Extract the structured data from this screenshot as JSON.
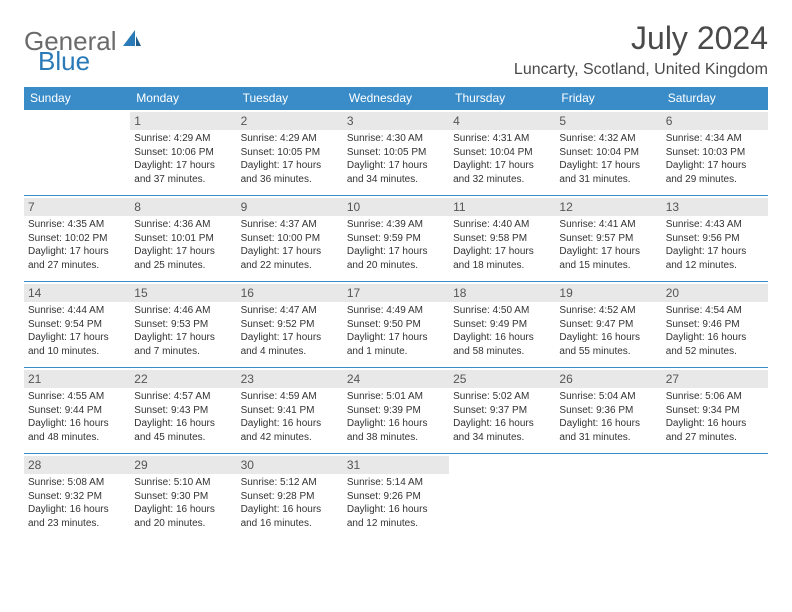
{
  "logo": {
    "text1": "General",
    "text2": "Blue"
  },
  "title": "July 2024",
  "location": "Luncarty, Scotland, United Kingdom",
  "colors": {
    "header_bg": "#3a8cc9",
    "header_text": "#ffffff",
    "daynum_bg": "#e8e8e8",
    "border": "#3a8cc9",
    "logo_gray": "#6b6b6b",
    "logo_blue": "#2a7ab8"
  },
  "weekdays": [
    "Sunday",
    "Monday",
    "Tuesday",
    "Wednesday",
    "Thursday",
    "Friday",
    "Saturday"
  ],
  "weeks": [
    [
      null,
      {
        "n": "1",
        "sunrise": "4:29 AM",
        "sunset": "10:06 PM",
        "daylight": "17 hours and 37 minutes."
      },
      {
        "n": "2",
        "sunrise": "4:29 AM",
        "sunset": "10:05 PM",
        "daylight": "17 hours and 36 minutes."
      },
      {
        "n": "3",
        "sunrise": "4:30 AM",
        "sunset": "10:05 PM",
        "daylight": "17 hours and 34 minutes."
      },
      {
        "n": "4",
        "sunrise": "4:31 AM",
        "sunset": "10:04 PM",
        "daylight": "17 hours and 32 minutes."
      },
      {
        "n": "5",
        "sunrise": "4:32 AM",
        "sunset": "10:04 PM",
        "daylight": "17 hours and 31 minutes."
      },
      {
        "n": "6",
        "sunrise": "4:34 AM",
        "sunset": "10:03 PM",
        "daylight": "17 hours and 29 minutes."
      }
    ],
    [
      {
        "n": "7",
        "sunrise": "4:35 AM",
        "sunset": "10:02 PM",
        "daylight": "17 hours and 27 minutes."
      },
      {
        "n": "8",
        "sunrise": "4:36 AM",
        "sunset": "10:01 PM",
        "daylight": "17 hours and 25 minutes."
      },
      {
        "n": "9",
        "sunrise": "4:37 AM",
        "sunset": "10:00 PM",
        "daylight": "17 hours and 22 minutes."
      },
      {
        "n": "10",
        "sunrise": "4:39 AM",
        "sunset": "9:59 PM",
        "daylight": "17 hours and 20 minutes."
      },
      {
        "n": "11",
        "sunrise": "4:40 AM",
        "sunset": "9:58 PM",
        "daylight": "17 hours and 18 minutes."
      },
      {
        "n": "12",
        "sunrise": "4:41 AM",
        "sunset": "9:57 PM",
        "daylight": "17 hours and 15 minutes."
      },
      {
        "n": "13",
        "sunrise": "4:43 AM",
        "sunset": "9:56 PM",
        "daylight": "17 hours and 12 minutes."
      }
    ],
    [
      {
        "n": "14",
        "sunrise": "4:44 AM",
        "sunset": "9:54 PM",
        "daylight": "17 hours and 10 minutes."
      },
      {
        "n": "15",
        "sunrise": "4:46 AM",
        "sunset": "9:53 PM",
        "daylight": "17 hours and 7 minutes."
      },
      {
        "n": "16",
        "sunrise": "4:47 AM",
        "sunset": "9:52 PM",
        "daylight": "17 hours and 4 minutes."
      },
      {
        "n": "17",
        "sunrise": "4:49 AM",
        "sunset": "9:50 PM",
        "daylight": "17 hours and 1 minute."
      },
      {
        "n": "18",
        "sunrise": "4:50 AM",
        "sunset": "9:49 PM",
        "daylight": "16 hours and 58 minutes."
      },
      {
        "n": "19",
        "sunrise": "4:52 AM",
        "sunset": "9:47 PM",
        "daylight": "16 hours and 55 minutes."
      },
      {
        "n": "20",
        "sunrise": "4:54 AM",
        "sunset": "9:46 PM",
        "daylight": "16 hours and 52 minutes."
      }
    ],
    [
      {
        "n": "21",
        "sunrise": "4:55 AM",
        "sunset": "9:44 PM",
        "daylight": "16 hours and 48 minutes."
      },
      {
        "n": "22",
        "sunrise": "4:57 AM",
        "sunset": "9:43 PM",
        "daylight": "16 hours and 45 minutes."
      },
      {
        "n": "23",
        "sunrise": "4:59 AM",
        "sunset": "9:41 PM",
        "daylight": "16 hours and 42 minutes."
      },
      {
        "n": "24",
        "sunrise": "5:01 AM",
        "sunset": "9:39 PM",
        "daylight": "16 hours and 38 minutes."
      },
      {
        "n": "25",
        "sunrise": "5:02 AM",
        "sunset": "9:37 PM",
        "daylight": "16 hours and 34 minutes."
      },
      {
        "n": "26",
        "sunrise": "5:04 AM",
        "sunset": "9:36 PM",
        "daylight": "16 hours and 31 minutes."
      },
      {
        "n": "27",
        "sunrise": "5:06 AM",
        "sunset": "9:34 PM",
        "daylight": "16 hours and 27 minutes."
      }
    ],
    [
      {
        "n": "28",
        "sunrise": "5:08 AM",
        "sunset": "9:32 PM",
        "daylight": "16 hours and 23 minutes."
      },
      {
        "n": "29",
        "sunrise": "5:10 AM",
        "sunset": "9:30 PM",
        "daylight": "16 hours and 20 minutes."
      },
      {
        "n": "30",
        "sunrise": "5:12 AM",
        "sunset": "9:28 PM",
        "daylight": "16 hours and 16 minutes."
      },
      {
        "n": "31",
        "sunrise": "5:14 AM",
        "sunset": "9:26 PM",
        "daylight": "16 hours and 12 minutes."
      },
      null,
      null,
      null
    ]
  ],
  "labels": {
    "sunrise": "Sunrise:",
    "sunset": "Sunset:",
    "daylight": "Daylight:"
  }
}
